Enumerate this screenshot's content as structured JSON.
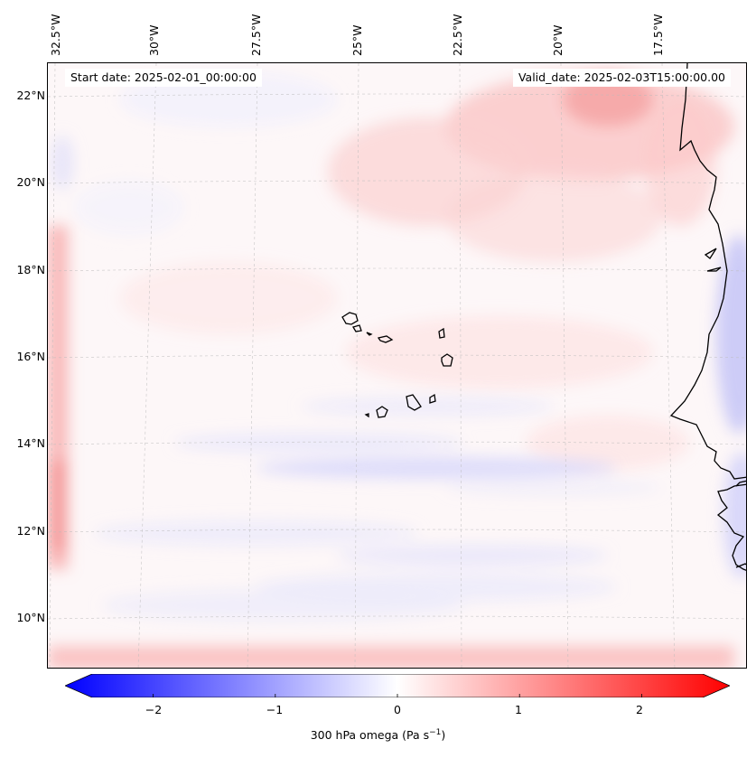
{
  "map": {
    "start_date": "Start date: 2025-02-01_00:00:00",
    "valid_date": "Valid_date: 2025-02-03T15:00:00.00",
    "lon_labels": [
      "32.5°W",
      "30°W",
      "27.5°W",
      "25°W",
      "22.5°W",
      "20°W",
      "17.5°W"
    ],
    "lat_labels": [
      "22°N",
      "20°N",
      "18°N",
      "16°N",
      "14°N",
      "12°N",
      "10°N"
    ],
    "extent": {
      "lon_min": -33.0,
      "lon_max": -15.5,
      "lat_min": 8.9,
      "lat_max": 22.8
    },
    "features": [
      "cape-verde-islands",
      "west-african-coastline"
    ]
  },
  "colorbar": {
    "label_prefix": "300 hPa omega (Pa s",
    "label_exp": "−1",
    "label_suffix": ")",
    "ticks": [
      "−2",
      "−1",
      "0",
      "1",
      "2"
    ],
    "tick_values": [
      -2,
      -1,
      0,
      1,
      2
    ],
    "vmin": -2.5,
    "vmax": 2.5,
    "cmap": "bwr",
    "colors": {
      "negative": "#0000ff",
      "zero": "#ffffff",
      "positive": "#ff0000"
    }
  }
}
